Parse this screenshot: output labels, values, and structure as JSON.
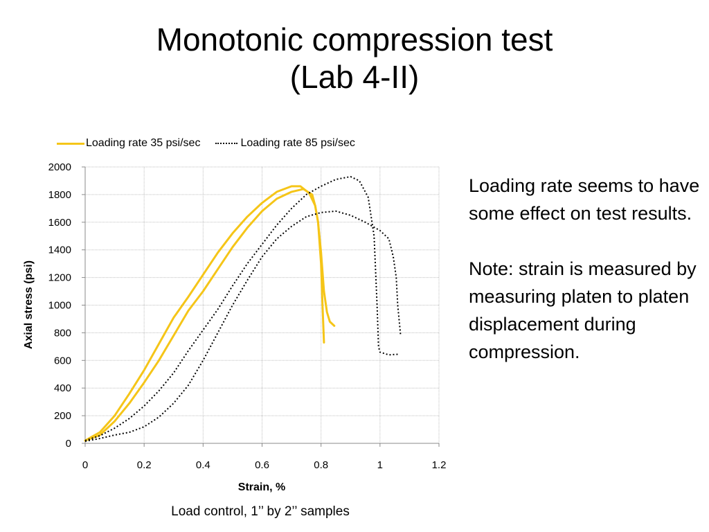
{
  "slide": {
    "title_line1": "Monotonic compression test",
    "title_line2": "(Lab 4-II)",
    "note1": "Loading rate seems to have some effect on test results.",
    "note2": "Note: strain is measured by measuring platen to platen displacement during compression.",
    "caption": "Load control, 1’’ by 2’’ samples"
  },
  "colors": {
    "rate35": "#f5c518",
    "rate85": "#000000",
    "grid": "#bfbfbf"
  },
  "chart_data": {
    "type": "line",
    "title": "",
    "xlabel": "Strain, %",
    "ylabel": "Axial stress (psi)",
    "xlim": [
      0,
      1.2
    ],
    "ylim": [
      0,
      2000
    ],
    "xticks": [
      "0",
      "0.2",
      "0.4",
      "0.6",
      "0.8",
      "1",
      "1.2"
    ],
    "yticks": [
      "0",
      "200",
      "400",
      "600",
      "800",
      "1000",
      "1200",
      "1400",
      "1600",
      "1800",
      "2000"
    ],
    "grid": true,
    "legend_position": "top",
    "series": [
      {
        "name": "Loading rate 35 psi/sec",
        "style": "solid",
        "curves": [
          [
            [
              0,
              20
            ],
            [
              0.05,
              80
            ],
            [
              0.1,
              200
            ],
            [
              0.15,
              360
            ],
            [
              0.2,
              530
            ],
            [
              0.25,
              720
            ],
            [
              0.3,
              910
            ],
            [
              0.35,
              1060
            ],
            [
              0.4,
              1220
            ],
            [
              0.45,
              1380
            ],
            [
              0.5,
              1520
            ],
            [
              0.55,
              1640
            ],
            [
              0.6,
              1740
            ],
            [
              0.65,
              1820
            ],
            [
              0.7,
              1860
            ],
            [
              0.73,
              1860
            ],
            [
              0.76,
              1810
            ],
            [
              0.78,
              1720
            ],
            [
              0.79,
              1600
            ],
            [
              0.8,
              1300
            ],
            [
              0.805,
              1000
            ],
            [
              0.81,
              730
            ]
          ],
          [
            [
              0,
              20
            ],
            [
              0.05,
              60
            ],
            [
              0.1,
              160
            ],
            [
              0.15,
              290
            ],
            [
              0.2,
              440
            ],
            [
              0.25,
              600
            ],
            [
              0.3,
              780
            ],
            [
              0.35,
              960
            ],
            [
              0.4,
              1100
            ],
            [
              0.45,
              1260
            ],
            [
              0.5,
              1420
            ],
            [
              0.55,
              1560
            ],
            [
              0.6,
              1680
            ],
            [
              0.65,
              1770
            ],
            [
              0.7,
              1820
            ],
            [
              0.74,
              1840
            ],
            [
              0.77,
              1800
            ],
            [
              0.78,
              1720
            ],
            [
              0.79,
              1600
            ],
            [
              0.8,
              1380
            ],
            [
              0.81,
              1100
            ],
            [
              0.82,
              950
            ],
            [
              0.83,
              880
            ],
            [
              0.845,
              850
            ]
          ]
        ]
      },
      {
        "name": "Loading rate 85 psi/sec",
        "style": "dotted",
        "curves": [
          [
            [
              0,
              20
            ],
            [
              0.05,
              55
            ],
            [
              0.1,
              110
            ],
            [
              0.15,
              180
            ],
            [
              0.2,
              270
            ],
            [
              0.25,
              380
            ],
            [
              0.3,
              510
            ],
            [
              0.35,
              670
            ],
            [
              0.4,
              820
            ],
            [
              0.45,
              970
            ],
            [
              0.5,
              1140
            ],
            [
              0.55,
              1300
            ],
            [
              0.6,
              1440
            ],
            [
              0.65,
              1580
            ],
            [
              0.7,
              1700
            ],
            [
              0.75,
              1800
            ],
            [
              0.8,
              1860
            ],
            [
              0.85,
              1910
            ],
            [
              0.9,
              1930
            ],
            [
              0.93,
              1900
            ],
            [
              0.96,
              1780
            ],
            [
              0.98,
              1500
            ],
            [
              0.99,
              1000
            ],
            [
              0.995,
              700
            ],
            [
              1.0,
              660
            ],
            [
              1.03,
              640
            ],
            [
              1.065,
              645
            ]
          ],
          [
            [
              0,
              15
            ],
            [
              0.05,
              35
            ],
            [
              0.1,
              60
            ],
            [
              0.15,
              80
            ],
            [
              0.2,
              120
            ],
            [
              0.25,
              190
            ],
            [
              0.3,
              290
            ],
            [
              0.35,
              420
            ],
            [
              0.4,
              600
            ],
            [
              0.45,
              800
            ],
            [
              0.5,
              1000
            ],
            [
              0.55,
              1180
            ],
            [
              0.6,
              1350
            ],
            [
              0.65,
              1480
            ],
            [
              0.7,
              1570
            ],
            [
              0.75,
              1640
            ],
            [
              0.8,
              1670
            ],
            [
              0.85,
              1680
            ],
            [
              0.9,
              1650
            ],
            [
              0.95,
              1600
            ],
            [
              1.0,
              1540
            ],
            [
              1.03,
              1480
            ],
            [
              1.045,
              1350
            ],
            [
              1.055,
              1200
            ],
            [
              1.06,
              1000
            ],
            [
              1.07,
              780
            ]
          ]
        ]
      }
    ]
  }
}
